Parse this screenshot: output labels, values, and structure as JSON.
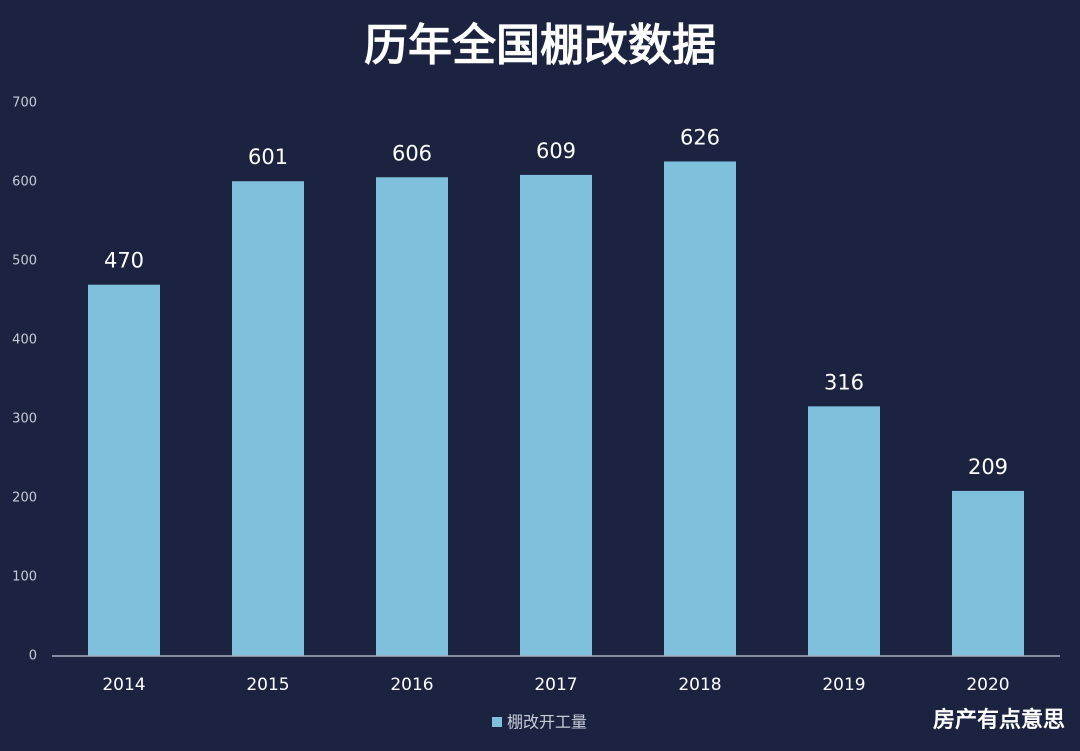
{
  "chart_data": {
    "type": "bar",
    "title": "历年全国棚改数据",
    "categories": [
      "2014",
      "2015",
      "2016",
      "2017",
      "2018",
      "2019",
      "2020"
    ],
    "series": [
      {
        "name": "棚改开工量",
        "color": "#7fc0dc",
        "values": [
          470,
          601,
          606,
          609,
          626,
          316,
          209
        ]
      }
    ],
    "ylim": [
      0,
      700
    ],
    "yticks": [
      0,
      100,
      200,
      300,
      400,
      500,
      600,
      700
    ],
    "grid": false,
    "legend": "bottom",
    "watermark": "房产有点意思"
  }
}
